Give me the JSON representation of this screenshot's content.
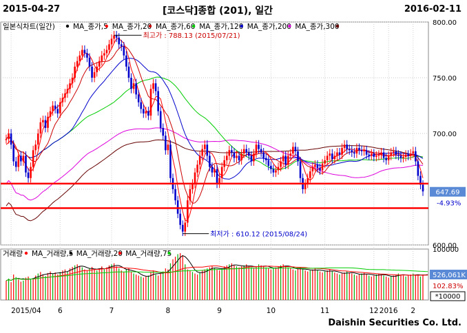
{
  "header": {
    "start_date": "2015-04-27",
    "title": "[코스닥]종합 (201), 일간",
    "end_date": "2016-02-11"
  },
  "footer": {
    "brand": "Daishin Securities Co. Ltd."
  },
  "price_legend": [
    {
      "label": "일본식차트(일간)",
      "color": "#000000"
    },
    {
      "label": "MA_종가,5",
      "color": "#ff0000"
    },
    {
      "label": "MA_종가,20",
      "color": "#cc0000"
    },
    {
      "label": "MA_종가,60",
      "color": "#00cc00"
    },
    {
      "label": "MA_종가,120",
      "color": "#0000cc"
    },
    {
      "label": "MA_종가,200",
      "color": "#dd00dd"
    },
    {
      "label": "MA_종가,300",
      "color": "#660000"
    }
  ],
  "volume_legend": [
    {
      "label": "거래량",
      "color": "#ff0000"
    },
    {
      "label": "MA_거래량,5",
      "color": "#000000"
    },
    {
      "label": "MA_거래량,20",
      "color": "#ff0000"
    },
    {
      "label": "MA_거래량,75",
      "color": "#00cc00"
    }
  ],
  "annotations": {
    "high_label": "최고가 : 788.13 (2015/07/21)",
    "low_label": "최저가 : 610.12 (2015/08/24)",
    "last_price": "647.69",
    "change_pct": "-4.93%",
    "last_volume": "526,061K",
    "volume_ratio": "102.83%",
    "volume_unit": "*10000"
  },
  "colors": {
    "up": "#ff0000",
    "down": "#0000cc",
    "hline": "#ff0000",
    "badge": "#5a8ad6"
  },
  "chart_data": {
    "type": "candlestick",
    "price_axis": {
      "ylim": [
        600,
        800
      ],
      "ticks": [
        600,
        650,
        700,
        750,
        800
      ],
      "tick_labels": [
        "600.00",
        "",
        "700.00",
        "750.00",
        "800.00"
      ]
    },
    "volume_axis": {
      "ylim": [
        0,
        100000
      ],
      "ticks": [
        100000
      ],
      "tick_labels": [
        "100000"
      ]
    },
    "x_axis_labels": [
      "2015/04",
      "6",
      "7",
      "8",
      "9",
      "10",
      "11",
      "12",
      "2016",
      "2"
    ],
    "horizontal_lines": [
      655,
      633
    ],
    "closes": [
      695,
      700,
      690,
      675,
      670,
      680,
      675,
      680,
      665,
      660,
      670,
      685,
      690,
      700,
      710,
      712,
      705,
      715,
      720,
      725,
      722,
      718,
      728,
      732,
      736,
      740,
      745,
      750,
      760,
      765,
      770,
      775,
      772,
      768,
      760,
      750,
      755,
      760,
      765,
      770,
      772,
      775,
      780,
      785,
      788,
      786,
      780,
      778,
      770,
      760,
      750,
      740,
      745,
      735,
      728,
      722,
      718,
      720,
      716,
      740,
      745,
      738,
      720,
      705,
      698,
      685,
      690,
      660,
      650,
      640,
      628,
      618,
      612,
      620,
      640,
      650,
      655,
      665,
      672,
      680,
      686,
      690,
      680,
      670,
      665,
      668,
      655,
      660,
      670,
      676,
      680,
      685,
      683,
      678,
      680,
      676,
      682,
      686,
      683,
      680,
      675,
      682,
      690,
      686,
      683,
      678,
      676,
      671,
      668,
      665,
      667,
      670,
      675,
      680,
      672,
      680,
      682,
      688,
      684,
      675,
      660,
      650,
      655,
      660,
      666,
      670,
      672,
      669,
      667,
      673,
      676,
      680,
      682,
      677,
      680,
      683,
      681,
      687,
      690,
      686,
      685,
      683,
      682,
      687,
      685,
      684,
      685,
      681,
      680,
      682,
      679,
      680,
      681,
      683,
      678,
      676,
      680,
      683,
      684,
      681,
      680,
      678,
      679,
      681,
      680,
      682,
      684,
      675,
      662,
      654,
      648
    ],
    "ma": {
      "5": [
        690,
        692,
        694,
        692,
        688,
        682,
        678,
        676,
        672,
        668,
        666,
        668,
        674,
        684,
        694,
        704,
        708,
        713,
        716,
        720,
        722,
        724,
        726,
        730,
        734,
        738,
        742,
        746,
        752,
        758,
        764,
        768,
        772,
        772,
        770,
        766,
        761,
        757,
        758,
        760,
        763,
        768,
        772,
        776,
        781,
        785,
        785,
        783,
        781,
        775,
        768,
        758,
        752,
        746,
        738,
        731,
        726,
        721,
        718,
        722,
        727,
        733,
        733,
        731,
        722,
        711,
        701,
        689,
        677,
        667,
        652,
        640,
        630,
        622,
        622,
        628,
        637,
        648,
        658,
        666,
        674,
        681,
        684,
        683,
        682,
        678,
        671,
        664,
        662,
        663,
        667,
        673,
        679,
        682,
        684,
        682,
        680,
        680,
        681,
        682,
        680,
        680,
        683,
        684,
        684,
        684,
        683,
        681,
        677,
        673,
        670,
        668,
        668,
        670,
        671,
        674,
        676,
        679,
        681,
        680,
        678,
        672,
        665,
        660,
        658,
        660,
        665,
        668,
        669,
        670,
        671,
        672,
        674,
        677,
        679,
        680,
        681,
        682,
        684,
        686,
        686,
        686,
        685,
        685,
        685,
        685,
        685,
        684,
        683,
        683,
        682,
        681,
        681,
        681,
        680,
        680,
        680,
        680,
        681,
        682,
        682,
        681,
        680,
        680,
        680,
        680,
        681,
        679,
        674,
        668,
        660
      ]
    },
    "volumes": [
      38000,
      42000,
      35000,
      50000,
      45000,
      40000,
      36000,
      38000,
      44000,
      46000,
      40000,
      42000,
      48000,
      52000,
      55000,
      50000,
      47000,
      53000,
      56000,
      52000,
      54000,
      50000,
      55000,
      58000,
      60000,
      56000,
      62000,
      65000,
      68000,
      70000,
      66000,
      64000,
      60000,
      58000,
      62000,
      65000,
      60000,
      58000,
      62000,
      66000,
      60000,
      64000,
      68000,
      70000,
      72000,
      66000,
      62000,
      58000,
      55000,
      60000,
      62000,
      56000,
      52000,
      50000,
      48000,
      46000,
      44000,
      46000,
      48000,
      55000,
      58000,
      50000,
      48000,
      52000,
      56000,
      62000,
      60000,
      72000,
      80000,
      85000,
      90000,
      92000,
      88000,
      70000,
      60000,
      58000,
      55000,
      52000,
      50000,
      54000,
      58000,
      60000,
      62000,
      64000,
      66000,
      62000,
      60000,
      58000,
      62000,
      66000,
      68000,
      70000,
      72000,
      68000,
      66000,
      64000,
      66000,
      68000,
      70000,
      66000,
      64000,
      62000,
      66000,
      70000,
      68000,
      66000,
      64000,
      62000,
      60000,
      62000,
      64000,
      66000,
      68000,
      70000,
      66000,
      64000,
      62000,
      60000,
      58000,
      62000,
      64000,
      60000,
      58000,
      56000,
      58000,
      60000,
      62000,
      58000,
      56000,
      54000,
      56000,
      58000,
      60000,
      56000,
      54000,
      52000,
      50000,
      52000,
      54000,
      56000,
      54000,
      52000,
      50000,
      48000,
      50000,
      52000,
      54000,
      50000,
      48000,
      46000,
      48000,
      50000,
      52000,
      50000,
      48000,
      46000,
      44000,
      46000,
      48000,
      50000,
      52000,
      50000,
      48000,
      46000,
      48000,
      50000,
      52000,
      50000,
      48000,
      46000,
      50000,
      52000,
      53000
    ]
  }
}
